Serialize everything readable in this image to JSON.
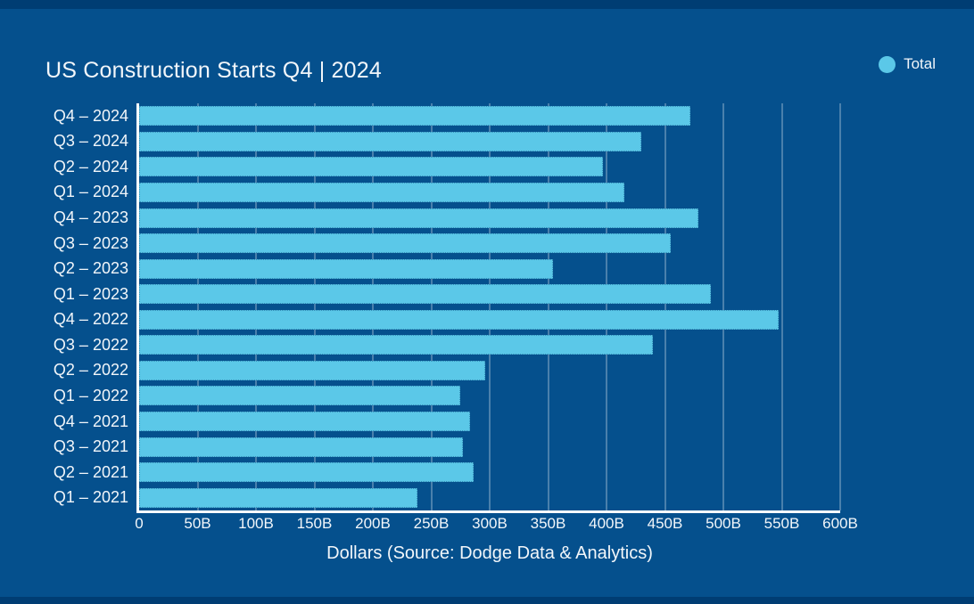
{
  "colors": {
    "band": "#003d73",
    "panel": "#05508d",
    "bar": "#5bc8e8",
    "bar_border": "rgba(6,70,125,0.45)",
    "grid": "rgba(255,255,255,0.28)",
    "axis": "#ffffff",
    "text": "#f2f6fa"
  },
  "chart_data": {
    "type": "bar",
    "orientation": "horizontal",
    "title": "US Construction Starts Q4 | 2024",
    "xlabel": "Dollars (Source: Dodge Data & Analytics)",
    "legend": [
      {
        "label": "Total"
      }
    ],
    "legend_position": "top-right",
    "grid": true,
    "xlim": [
      0,
      600
    ],
    "x_ticks": [
      {
        "value": 0,
        "label": "0"
      },
      {
        "value": 50,
        "label": "50B"
      },
      {
        "value": 100,
        "label": "100B"
      },
      {
        "value": 150,
        "label": "150B"
      },
      {
        "value": 200,
        "label": "200B"
      },
      {
        "value": 250,
        "label": "250B"
      },
      {
        "value": 300,
        "label": "300B"
      },
      {
        "value": 350,
        "label": "350B"
      },
      {
        "value": 400,
        "label": "400B"
      },
      {
        "value": 450,
        "label": "450B"
      },
      {
        "value": 500,
        "label": "500B"
      },
      {
        "value": 550,
        "label": "550B"
      },
      {
        "value": 600,
        "label": "600B"
      }
    ],
    "categories": [
      "Q4 – 2024",
      "Q3 – 2024",
      "Q2 – 2024",
      "Q1 – 2024",
      "Q4 – 2023",
      "Q3 – 2023",
      "Q2 – 2023",
      "Q1 – 2023",
      "Q4 – 2022",
      "Q3 – 2022",
      "Q2 – 2022",
      "Q1 – 2022",
      "Q4 – 2021",
      "Q3 – 2021",
      "Q2 – 2021",
      "Q1 – 2021"
    ],
    "values": [
      472,
      430,
      397,
      415,
      479,
      455,
      354,
      489,
      547,
      440,
      296,
      275,
      283,
      277,
      286,
      238
    ],
    "values_unit": "B"
  }
}
